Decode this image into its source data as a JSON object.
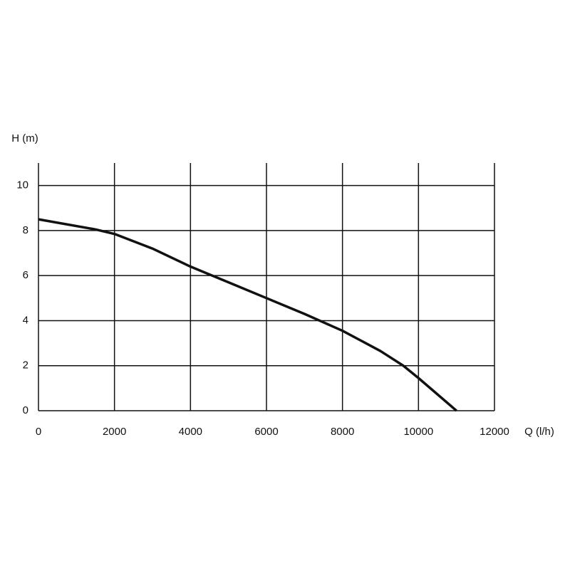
{
  "chart_data": {
    "type": "line",
    "y_label": "H (m)",
    "x_label": "Q (l/h)",
    "x": [
      0,
      1500,
      2000,
      3000,
      4000,
      5000,
      6000,
      7000,
      8000,
      9000,
      9600,
      10000,
      11000
    ],
    "series": [
      {
        "color": "#111111",
        "values": [
          8.5,
          8.05,
          7.85,
          7.2,
          6.4,
          5.7,
          5.0,
          4.3,
          3.55,
          2.65,
          2.0,
          1.45,
          0
        ]
      }
    ],
    "xlim": [
      0,
      12000
    ],
    "xticks": [
      0,
      2000,
      4000,
      6000,
      8000,
      10000,
      12000
    ],
    "ylim": [
      0,
      11
    ],
    "yticks": [
      0,
      2,
      4,
      6,
      8,
      10
    ],
    "grid": true
  }
}
